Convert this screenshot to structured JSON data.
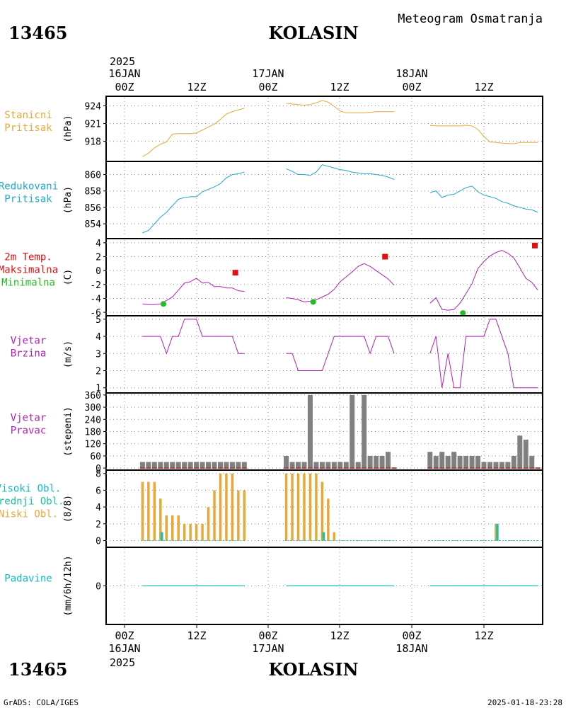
{
  "header": {
    "station_id": "13465",
    "station_name": "KOLASIN",
    "subtitle": "Meteogram Osmatranja"
  },
  "footer": {
    "station_id": "13465",
    "station_name": "KOLASIN",
    "credit": "GrADS: COLA/IGES",
    "timestamp": "2025-01-18-23:28"
  },
  "time_axis": {
    "top_year": "2025",
    "bottom_year": "2025",
    "hour_labels": [
      "00Z",
      "12Z",
      "00Z",
      "12Z",
      "00Z",
      "12Z"
    ],
    "date_labels": [
      "16JAN",
      "17JAN",
      "18JAN"
    ]
  },
  "colors": {
    "orange": "#e8a838",
    "blue": "#20a8cc",
    "magenta": "#b020b0",
    "red": "#e01010",
    "green": "#20c020",
    "gray": "#808080",
    "brown": "#a04040",
    "teal": "#20c0a0",
    "cyan": "#10b8c8"
  },
  "chart_data": [
    {
      "type": "line",
      "panel_label": [
        "Stanicni",
        "Pritisak"
      ],
      "ylabel": "(hPa)",
      "yticks": [
        918,
        921,
        924
      ],
      "ylim": [
        914.6,
        925.6
      ],
      "series": [
        {
          "x": [
            3,
            4,
            5,
            6,
            7,
            8,
            9,
            10,
            11,
            12,
            13,
            14,
            15,
            16,
            17,
            18,
            19,
            20
          ],
          "values": [
            915.4,
            916.0,
            916.9,
            917.5,
            917.9,
            919.2,
            919.3,
            919.3,
            919.3,
            919.4,
            919.9,
            920.4,
            920.9,
            921.7,
            922.6,
            923.0,
            923.3,
            923.6
          ]
        },
        {
          "x": [
            27,
            28,
            29,
            30,
            31,
            32,
            33,
            34,
            35,
            36,
            37,
            38,
            39,
            40,
            41,
            42,
            43,
            44,
            45
          ],
          "values": [
            924.4,
            924.3,
            924.2,
            924.1,
            924.2,
            924.5,
            924.9,
            924.6,
            923.9,
            923.1,
            922.8,
            922.8,
            922.8,
            922.8,
            922.9,
            923.0,
            923.0,
            923.0,
            923.0
          ]
        },
        {
          "x": [
            51,
            52,
            53,
            54,
            55,
            56,
            57,
            58,
            59,
            60,
            61,
            62,
            63,
            64,
            65,
            66,
            67,
            68,
            69
          ],
          "values": [
            920.7,
            920.6,
            920.6,
            920.6,
            920.6,
            920.6,
            920.7,
            920.6,
            920.0,
            918.8,
            917.9,
            917.8,
            917.7,
            917.6,
            917.6,
            917.8,
            917.8,
            917.8,
            917.8
          ]
        }
      ]
    },
    {
      "type": "line",
      "panel_label": [
        "Redukovani",
        "Pritisak"
      ],
      "ylabel": "(hPa)",
      "yticks": [
        854,
        856,
        858,
        860
      ],
      "ylim": [
        852.2,
        861.6
      ],
      "series": [
        {
          "x": [
            3,
            4,
            5,
            6,
            7,
            8,
            9,
            10,
            11,
            12,
            13,
            14,
            15,
            16,
            17,
            18,
            19,
            20
          ],
          "values": [
            852.9,
            853.2,
            854.0,
            854.8,
            855.4,
            856.2,
            857.0,
            857.2,
            857.3,
            857.3,
            857.9,
            858.2,
            858.5,
            858.9,
            859.6,
            860.0,
            860.1,
            860.3
          ]
        },
        {
          "x": [
            27,
            28,
            29,
            30,
            31,
            32,
            33,
            34,
            35,
            36,
            37,
            38,
            39,
            40,
            41,
            42,
            43,
            44,
            45
          ],
          "values": [
            860.7,
            860.4,
            860.0,
            860.0,
            859.9,
            860.3,
            861.2,
            861.0,
            860.8,
            860.6,
            860.5,
            860.3,
            860.2,
            860.1,
            860.1,
            860.0,
            859.9,
            859.7,
            859.4
          ]
        },
        {
          "x": [
            51,
            52,
            53,
            54,
            55,
            56,
            57,
            58,
            59,
            60,
            61,
            62,
            63,
            64,
            65,
            66,
            67,
            68,
            69
          ],
          "values": [
            857.8,
            858.0,
            857.2,
            857.5,
            857.6,
            858.0,
            858.4,
            858.6,
            857.9,
            857.5,
            857.3,
            857.1,
            856.7,
            856.5,
            856.2,
            856.0,
            855.8,
            855.7,
            855.4
          ]
        }
      ]
    },
    {
      "type": "line",
      "panel_label": [
        "2m Temp.",
        "Maksimalna",
        "Minimalna"
      ],
      "ylabel": "(C)",
      "yticks": [
        -6,
        -4,
        -2,
        0,
        2,
        4
      ],
      "ylim": [
        -6.5,
        4.6
      ],
      "series": [
        {
          "x": [
            3,
            4,
            5,
            6,
            7,
            8,
            9,
            10,
            11,
            12,
            13,
            14,
            15,
            16,
            17,
            18,
            19,
            20
          ],
          "values": [
            -4.8,
            -4.9,
            -4.9,
            -4.8,
            -4.3,
            -3.8,
            -2.8,
            -1.8,
            -1.6,
            -1.1,
            -1.8,
            -1.7,
            -2.3,
            -2.3,
            -2.5,
            -2.5,
            -2.9,
            -3.0
          ]
        },
        {
          "x": [
            27,
            28,
            29,
            30,
            31,
            32,
            33,
            34,
            35,
            36,
            37,
            38,
            39,
            40,
            41,
            42,
            43,
            44,
            45
          ],
          "values": [
            -3.9,
            -4.0,
            -4.2,
            -4.5,
            -4.4,
            -4.2,
            -3.8,
            -3.4,
            -2.7,
            -1.6,
            -0.9,
            -0.2,
            0.6,
            1.0,
            0.6,
            0.0,
            -0.6,
            -1.2,
            -2.1
          ]
        },
        {
          "x": [
            51,
            52,
            53,
            54,
            55,
            56,
            57,
            58,
            59,
            60,
            61,
            62,
            63,
            64,
            65,
            66,
            67,
            68,
            69
          ],
          "values": [
            -4.7,
            -3.9,
            -5.6,
            -5.7,
            -5.6,
            -4.7,
            -3.3,
            -1.9,
            0.3,
            1.3,
            2.1,
            2.6,
            2.9,
            2.5,
            1.8,
            0.4,
            -1.1,
            -1.7,
            -2.8
          ]
        }
      ],
      "maxima": [
        {
          "x": 18.5,
          "value": -0.3
        },
        {
          "x": 43.5,
          "value": 2.0
        },
        {
          "x": 68.5,
          "value": 3.6
        }
      ],
      "minima": [
        {
          "x": 6.5,
          "value": -4.8
        },
        {
          "x": 31.5,
          "value": -4.5
        },
        {
          "x": 56.5,
          "value": -6.1
        }
      ]
    },
    {
      "type": "line",
      "panel_label": [
        "Vjetar",
        "Brzina"
      ],
      "ylabel": "(m/s)",
      "yticks": [
        1,
        2,
        3,
        4,
        5
      ],
      "ylim": [
        0.7,
        5.2
      ],
      "series": [
        {
          "x": [
            3,
            4,
            5,
            6,
            7,
            8,
            9,
            10,
            11,
            12,
            13,
            14,
            15,
            16,
            17,
            18,
            19,
            20
          ],
          "values": [
            4,
            4,
            4,
            4,
            3,
            4,
            4,
            5,
            5,
            5,
            4,
            4,
            4,
            4,
            4,
            4,
            3,
            3
          ]
        },
        {
          "x": [
            27,
            28,
            29,
            30,
            31,
            32,
            33,
            34,
            35,
            36,
            37,
            38,
            39,
            40,
            41,
            42,
            43,
            44,
            45
          ],
          "values": [
            3,
            3,
            2,
            2,
            2,
            2,
            2,
            3,
            4,
            4,
            4,
            4,
            4,
            4,
            3,
            4,
            4,
            4,
            3
          ]
        },
        {
          "x": [
            51,
            52,
            53,
            54,
            55,
            56,
            57,
            58,
            59,
            60,
            61,
            62,
            63,
            64,
            65,
            66,
            67,
            68,
            69
          ],
          "values": [
            3,
            4,
            1,
            3,
            1,
            1,
            4,
            4,
            4,
            4,
            5,
            5,
            4,
            3,
            1,
            1,
            1,
            1,
            1
          ]
        }
      ]
    },
    {
      "type": "bar",
      "panel_label": [
        "Vjetar",
        "Pravac"
      ],
      "ylabel": "(stepeni)",
      "yticks": [
        0,
        60,
        120,
        180,
        240,
        300,
        360
      ],
      "ylim": [
        -10,
        370
      ],
      "series": [
        {
          "x": [
            3,
            4,
            5,
            6,
            7,
            8,
            9,
            10,
            11,
            12,
            13,
            14,
            15,
            16,
            17,
            18,
            19,
            20
          ],
          "values": [
            30,
            30,
            30,
            30,
            30,
            30,
            30,
            30,
            30,
            30,
            30,
            30,
            30,
            30,
            30,
            30,
            30,
            30
          ]
        },
        {
          "x": [
            27,
            28,
            29,
            30,
            31,
            32,
            33,
            34,
            35,
            36,
            37,
            38,
            39,
            40,
            41,
            42,
            43,
            44,
            45
          ],
          "values": [
            60,
            30,
            30,
            30,
            360,
            30,
            30,
            30,
            30,
            30,
            30,
            360,
            30,
            360,
            60,
            60,
            60,
            80,
            0
          ]
        },
        {
          "x": [
            51,
            52,
            53,
            54,
            55,
            56,
            57,
            58,
            59,
            60,
            61,
            62,
            63,
            64,
            65,
            66,
            67,
            68,
            69
          ],
          "values": [
            80,
            60,
            80,
            60,
            80,
            60,
            60,
            60,
            60,
            30,
            30,
            30,
            30,
            30,
            60,
            160,
            140,
            60,
            0
          ]
        }
      ]
    },
    {
      "type": "bar",
      "panel_label": [
        "Visoki Obl.",
        "Srednji Obl.",
        "Niski Obl."
      ],
      "ylabel": "(8/8)",
      "yticks": [
        0,
        2,
        4,
        6,
        8
      ],
      "ylim": [
        -0.8,
        8.4
      ],
      "series": [
        {
          "name": "Niski Obl.",
          "x": [
            3,
            4,
            5,
            6,
            7,
            8,
            9,
            10,
            11,
            12,
            13,
            14,
            15,
            16,
            17,
            18,
            19,
            20
          ],
          "values": [
            7,
            7,
            7,
            5,
            3,
            3,
            3,
            2,
            2,
            2,
            2,
            4,
            6,
            8,
            8,
            8,
            6,
            6
          ]
        },
        {
          "name": "Niski Obl.",
          "x": [
            27,
            28,
            29,
            30,
            31,
            32,
            33,
            34,
            35,
            36,
            37,
            38,
            39,
            40,
            41,
            42,
            43,
            44,
            45
          ],
          "values": [
            8,
            8,
            8,
            8,
            8,
            8,
            7,
            5,
            1,
            0,
            0,
            0,
            0,
            0,
            0,
            0,
            0,
            0,
            0
          ]
        },
        {
          "name": "Niski Obl.",
          "x": [
            51,
            52,
            53,
            54,
            55,
            56,
            57,
            58,
            59,
            60,
            61,
            62,
            63,
            64,
            65,
            66,
            67,
            68,
            69
          ],
          "values": [
            0,
            0,
            0,
            0,
            0,
            0,
            0,
            0,
            0,
            0,
            0,
            2,
            0,
            0,
            0,
            0,
            0,
            0,
            0
          ]
        },
        {
          "name": "Srednji Obl.",
          "x": [
            6,
            33,
            62
          ],
          "values": [
            1,
            1,
            2
          ]
        }
      ]
    },
    {
      "type": "line",
      "panel_label": [
        "Padavine"
      ],
      "ylabel": "(mm/6h/12h)",
      "yticks": [
        0
      ],
      "ylim": [
        -1,
        1
      ],
      "series": [
        {
          "x": [
            3,
            20
          ],
          "values": [
            0,
            0
          ]
        },
        {
          "x": [
            27,
            45
          ],
          "values": [
            0,
            0
          ]
        },
        {
          "x": [
            51,
            69
          ],
          "values": [
            0,
            0
          ]
        }
      ]
    }
  ]
}
